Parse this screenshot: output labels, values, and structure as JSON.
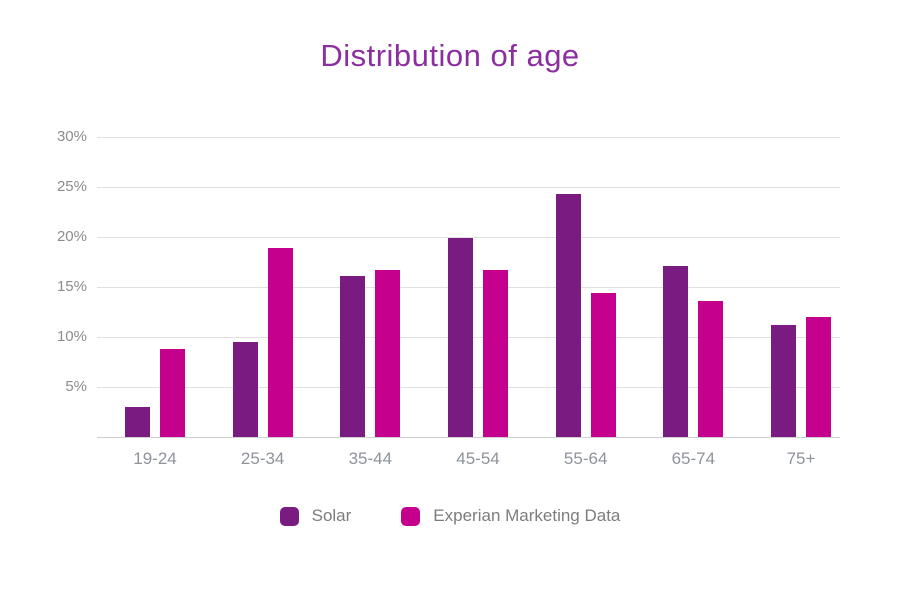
{
  "chart_data": {
    "type": "bar",
    "title": "Distribution of age",
    "categories": [
      "19-24",
      "25-34",
      "35-44",
      "45-54",
      "55-64",
      "65-74",
      "75+"
    ],
    "series": [
      {
        "name": "Solar",
        "color": "#7a1b82",
        "values": [
          3.0,
          9.5,
          16.1,
          19.9,
          24.3,
          17.1,
          11.2
        ]
      },
      {
        "name": "Experian Marketing Data",
        "color": "#c5008d",
        "values": [
          8.8,
          18.9,
          16.7,
          16.7,
          14.4,
          13.6,
          12.0
        ]
      }
    ],
    "xlabel": "",
    "ylabel": "",
    "y_ticks": [
      "30%",
      "25%",
      "20%",
      "15%",
      "10%",
      "5%"
    ],
    "ylim": [
      0,
      30
    ],
    "grid": true,
    "legend_position": "bottom"
  },
  "colors": {
    "title": "#8b2fa0",
    "gridline": "#e0e0e0",
    "baseline": "#cfcfcf",
    "y_tick_text": "#8c8c8c",
    "x_tick_text": "#8e939b",
    "legend_text": "#7d7d7d",
    "background": "#ffffff"
  }
}
